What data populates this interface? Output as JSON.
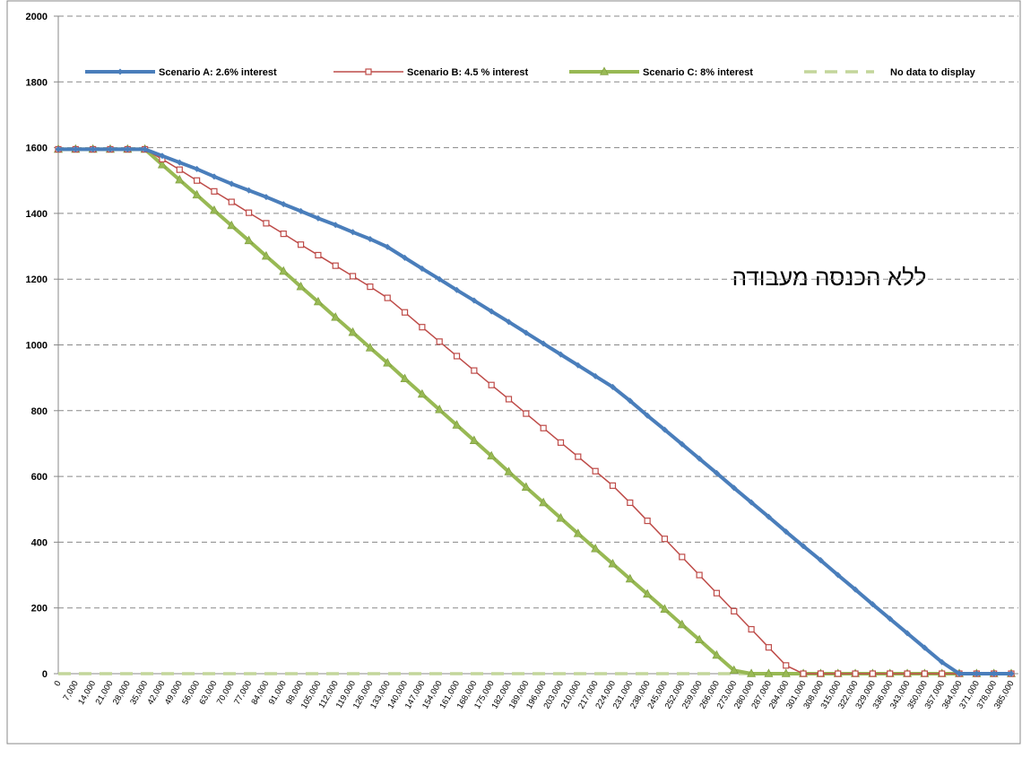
{
  "chart_data": {
    "type": "line",
    "annotation": "ללא הכנסה מעבודה",
    "categories": [
      "0",
      "7,000",
      "14,000",
      "21,000",
      "28,000",
      "35,000",
      "42,000",
      "49,000",
      "56,000",
      "63,000",
      "70,000",
      "77,000",
      "84,000",
      "91,000",
      "98,000",
      "105,000",
      "112,000",
      "119,000",
      "126,000",
      "133,000",
      "140,000",
      "147,000",
      "154,000",
      "161,000",
      "168,000",
      "175,000",
      "182,000",
      "189,000",
      "196,000",
      "203,000",
      "210,000",
      "217,000",
      "224,000",
      "231,000",
      "238,000",
      "245,000",
      "252,000",
      "259,000",
      "266,000",
      "273,000",
      "280,000",
      "287,000",
      "294,000",
      "301,000",
      "308,000",
      "315,000",
      "322,000",
      "329,000",
      "336,000",
      "343,000",
      "350,000",
      "357,000",
      "364,000",
      "371,000",
      "378,000",
      "385,000"
    ],
    "series": [
      {
        "name": "Scenario A: 2.6% interest",
        "color": "#4a7ebb",
        "marker": "diamond",
        "values": [
          1595,
          1595,
          1595,
          1595,
          1595,
          1595,
          1575,
          1555,
          1535,
          1512,
          1490,
          1470,
          1450,
          1428,
          1407,
          1385,
          1365,
          1343,
          1322,
          1298,
          1265,
          1232,
          1200,
          1167,
          1135,
          1102,
          1070,
          1037,
          1004,
          971,
          938,
          905,
          872,
          830,
          785,
          742,
          698,
          654,
          610,
          565,
          521,
          477,
          432,
          388,
          345,
          300,
          256,
          211,
          167,
          123,
          79,
          35,
          0,
          0,
          0,
          0
        ]
      },
      {
        "name": "Scenario B: 4.5 % interest",
        "color": "#be4b48",
        "marker": "square",
        "values": [
          1595,
          1595,
          1595,
          1595,
          1595,
          1595,
          1565,
          1533,
          1500,
          1467,
          1435,
          1402,
          1370,
          1338,
          1305,
          1273,
          1241,
          1209,
          1177,
          1143,
          1099,
          1054,
          1010,
          966,
          922,
          878,
          835,
          791,
          747,
          703,
          660,
          616,
          572,
          520,
          465,
          410,
          355,
          300,
          245,
          190,
          135,
          80,
          25,
          0,
          0,
          0,
          0,
          0,
          0,
          0,
          0,
          0,
          0,
          0,
          0,
          0
        ]
      },
      {
        "name": "Scenario C: 8% interest",
        "color": "#98b954",
        "marker": "triangle",
        "values": [
          1595,
          1595,
          1595,
          1595,
          1595,
          1595,
          1548,
          1502,
          1456,
          1409,
          1363,
          1317,
          1270,
          1224,
          1177,
          1131,
          1084,
          1038,
          991,
          945,
          897,
          850,
          803,
          756,
          709,
          662,
          614,
          567,
          520,
          473,
          426,
          380,
          334,
          288,
          242,
          196,
          149,
          103,
          56,
          10,
          0,
          0,
          0,
          0,
          0,
          0,
          0,
          0,
          0,
          0,
          0,
          0,
          0,
          0,
          0,
          0
        ]
      },
      {
        "name": "No data to display",
        "color": "#c3d69b",
        "marker": "none",
        "dashed": true,
        "values": [
          0,
          0,
          0,
          0,
          0,
          0,
          0,
          0,
          0,
          0,
          0,
          0,
          0,
          0,
          0,
          0,
          0,
          0,
          0,
          0,
          0,
          0,
          0,
          0,
          0,
          0,
          0,
          0,
          0,
          0,
          0,
          0,
          0,
          0,
          0,
          0,
          0,
          0,
          0,
          0,
          0,
          0,
          0,
          0,
          0,
          0,
          0,
          0,
          0,
          0,
          0,
          0,
          0,
          0,
          0,
          0
        ]
      }
    ],
    "ylim": [
      0,
      2000
    ],
    "yticks": [
      0,
      200,
      400,
      600,
      800,
      1000,
      1200,
      1400,
      1600,
      1800,
      2000
    ],
    "grid": true,
    "legend": "top"
  }
}
